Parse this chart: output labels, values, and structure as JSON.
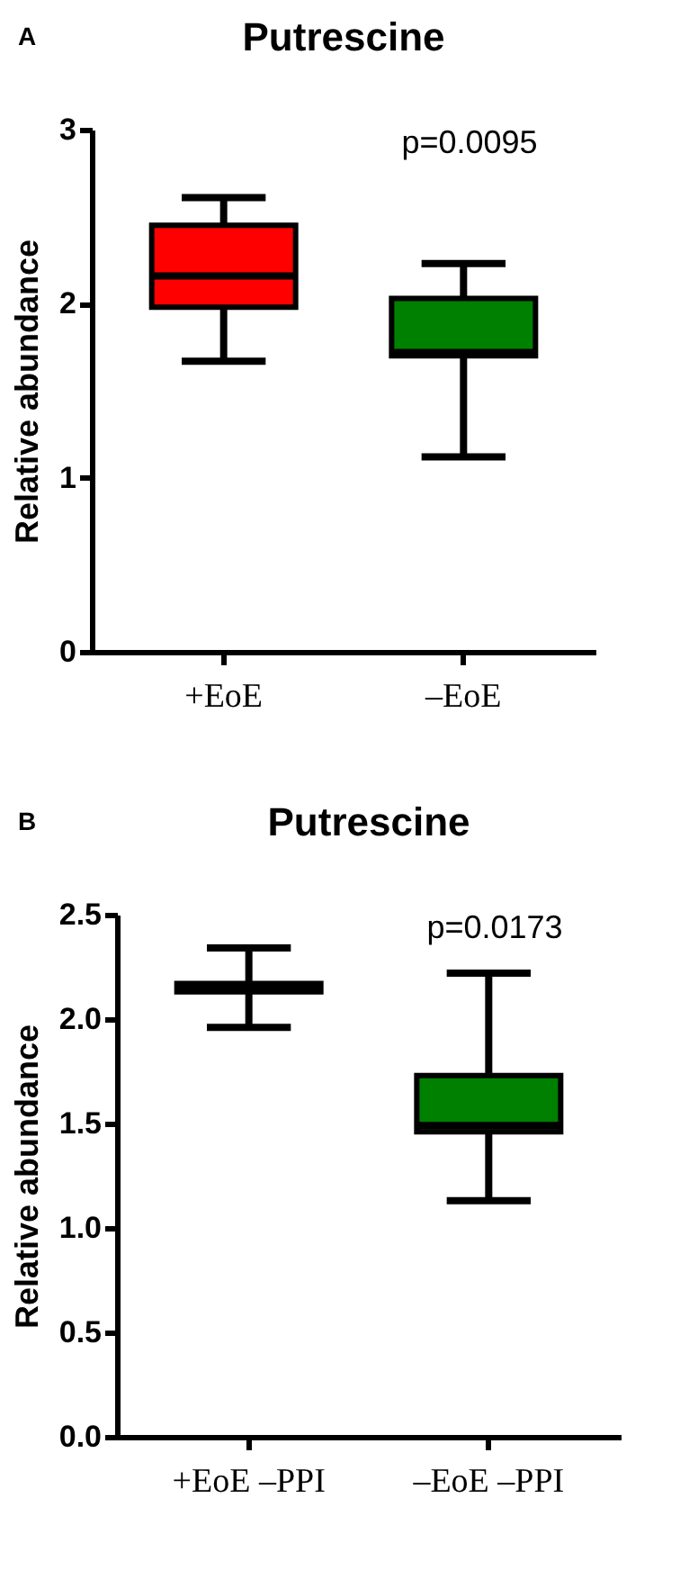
{
  "chart_data": [
    {
      "type": "box",
      "title": "Putrescine",
      "ylabel": "Relative abundance",
      "categories": [
        "+EoE",
        "–EoE"
      ],
      "colors": [
        "#ff0000",
        "#008000"
      ],
      "boxes": [
        {
          "low": 1.67,
          "q1": 1.98,
          "median": 2.16,
          "q3": 2.45,
          "high": 2.61
        },
        {
          "low": 1.12,
          "q1": 1.7,
          "median": 1.72,
          "q3": 2.03,
          "high": 2.23
        }
      ],
      "ylim": [
        0,
        3
      ],
      "yticks": [
        0,
        1,
        2,
        3
      ],
      "grid": false,
      "annotations": [
        "A",
        "p=0.0095"
      ]
    },
    {
      "type": "box",
      "title": "Putrescine",
      "ylabel": "Relative abundance",
      "categories": [
        "+EoE –PPI",
        "–EoE –PPI"
      ],
      "colors": [
        "#ff0000",
        "#008000"
      ],
      "boxes": [
        {
          "low": 1.96,
          "q1": 2.13,
          "median": 2.15,
          "q3": 2.17,
          "high": 2.34
        },
        {
          "low": 1.13,
          "q1": 1.46,
          "median": 1.49,
          "q3": 1.73,
          "high": 2.22
        }
      ],
      "ylim": [
        0,
        2.5
      ],
      "yticks": [
        {
          "value": 0,
          "label": "0.0"
        },
        {
          "value": 0.5,
          "label": "0.5"
        },
        {
          "value": 1,
          "label": "1.0"
        },
        {
          "value": 1.5,
          "label": "1.5"
        },
        {
          "value": 2,
          "label": "2.0"
        },
        {
          "value": 2.5,
          "label": "2.5"
        }
      ],
      "grid": false,
      "annotations": [
        "B",
        "p=0.0173"
      ]
    }
  ]
}
